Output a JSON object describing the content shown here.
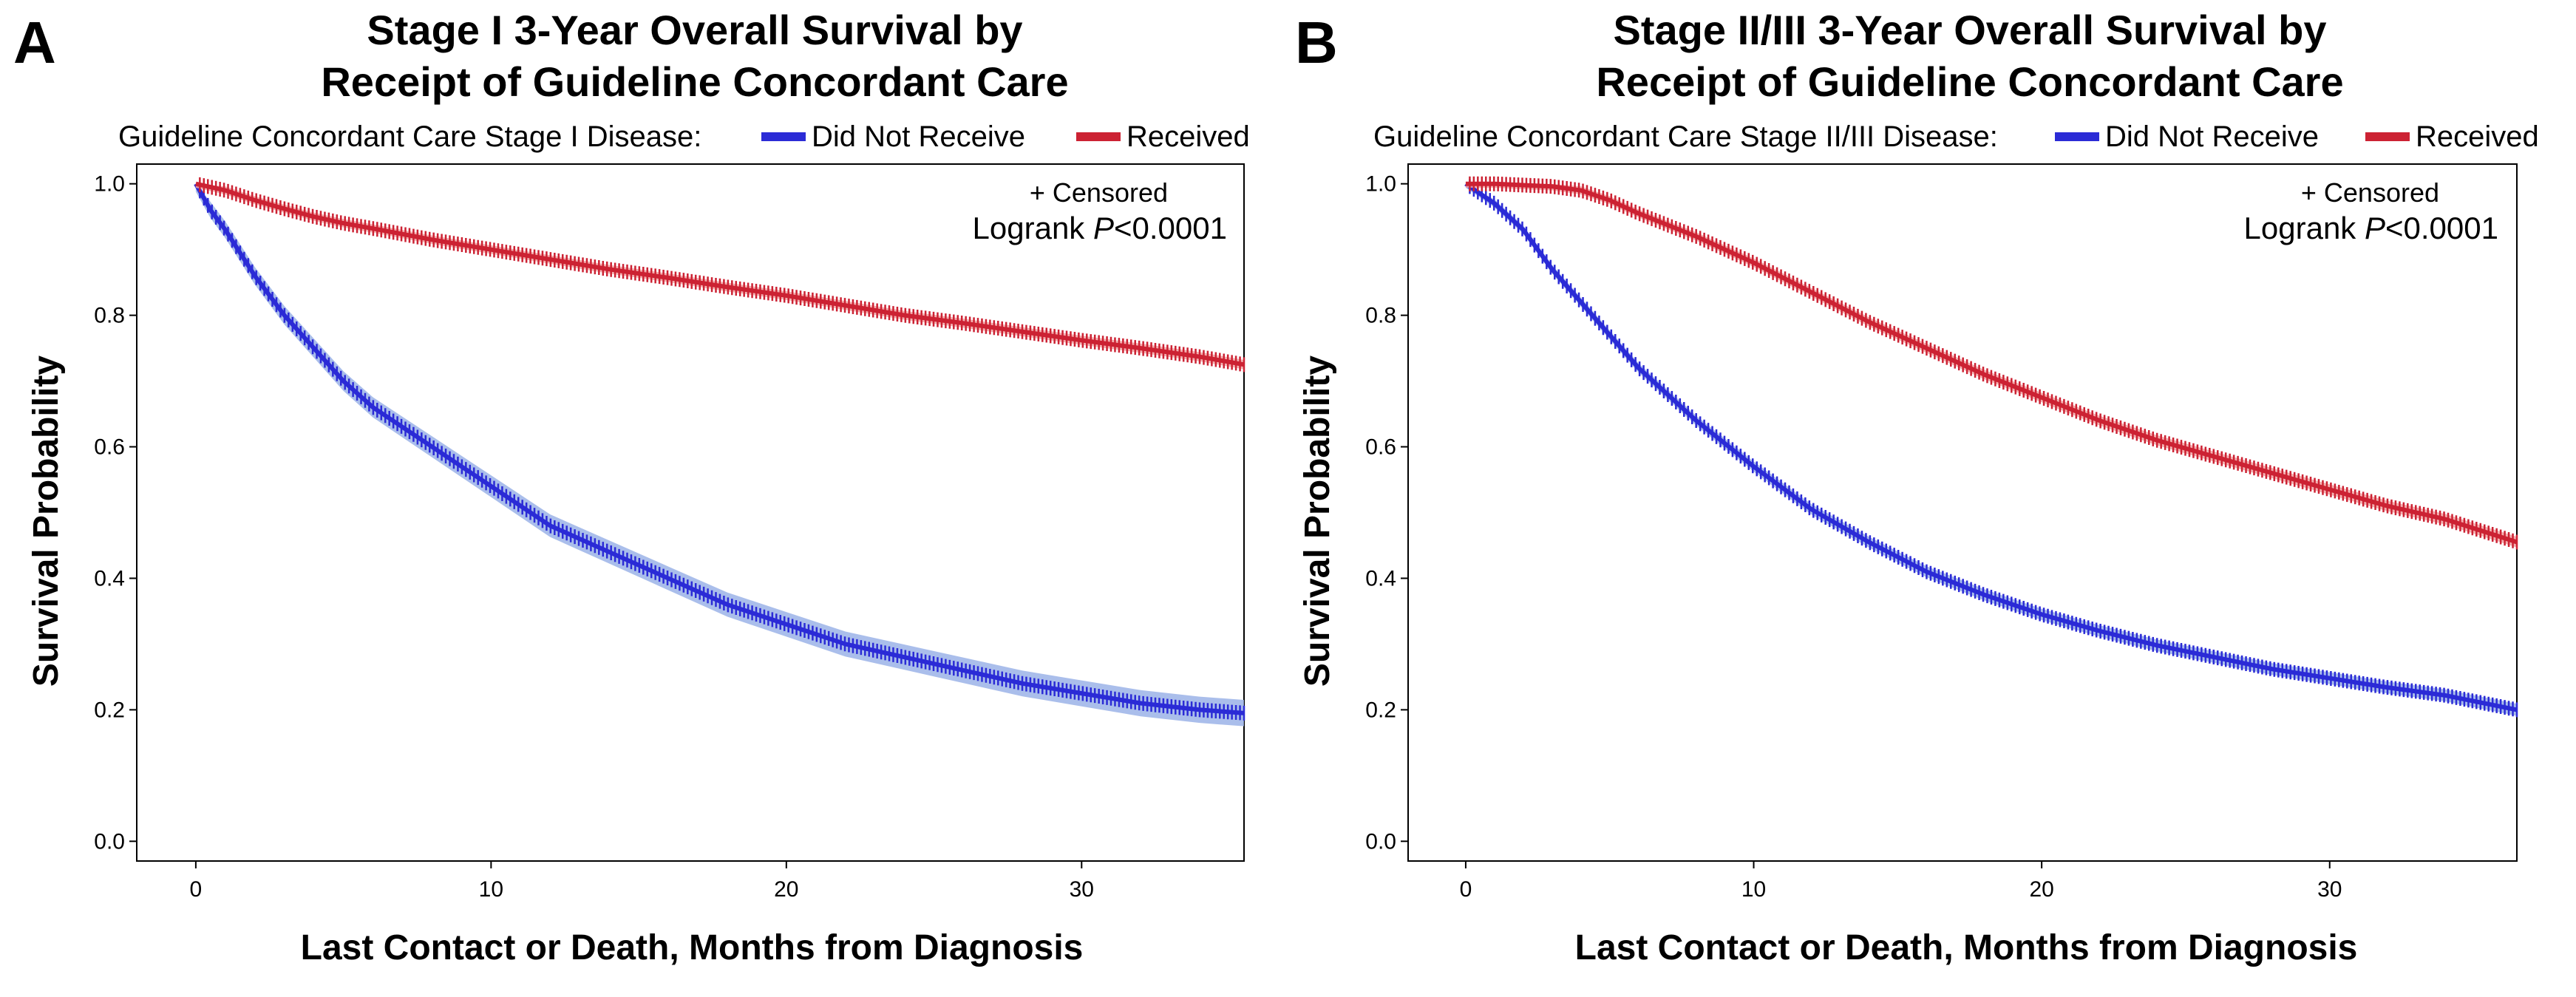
{
  "chart_data": [
    {
      "type": "line",
      "panel": "A",
      "title": [
        "Stage I 3-Year Overall Survival by",
        "Receipt of Guideline Concordant Care"
      ],
      "legend_title": "Guideline Concordant Care Stage I Disease:",
      "xlabel": "Last Contact or Death, Months from Diagnosis",
      "ylabel": "Survival Probability",
      "censored_label": "+ Censored",
      "logrank_prefix": "Logrank ",
      "logrank_p": "P",
      "logrank_value": "<0.0001",
      "xlim": [
        -2,
        35.5
      ],
      "ylim": [
        -0.03,
        1.03
      ],
      "xticks": [
        0,
        10,
        20,
        30
      ],
      "yticks": [
        "0.0",
        "0.2",
        "0.4",
        "0.6",
        "0.8",
        "1.0"
      ],
      "series": [
        {
          "name": "Did Not Receive",
          "color": "#2b2bd6",
          "band_color": "#9bb3e8",
          "x": [
            0,
            0.5,
            1,
            2,
            3,
            4,
            5,
            6,
            7,
            8,
            9,
            10,
            12,
            14,
            16,
            18,
            20,
            22,
            24,
            26,
            28,
            30,
            32,
            34,
            35.5
          ],
          "y": [
            1.0,
            0.96,
            0.93,
            0.86,
            0.8,
            0.75,
            0.7,
            0.66,
            0.63,
            0.6,
            0.57,
            0.54,
            0.48,
            0.44,
            0.4,
            0.36,
            0.33,
            0.3,
            0.28,
            0.26,
            0.24,
            0.225,
            0.21,
            0.2,
            0.195
          ]
        },
        {
          "name": "Received",
          "color": "#cc2233",
          "band_color": "#f2a5a5",
          "x": [
            0,
            1,
            2,
            3,
            4,
            5,
            6,
            8,
            10,
            12,
            14,
            16,
            18,
            20,
            22,
            24,
            26,
            28,
            30,
            32,
            34,
            35.5
          ],
          "y": [
            1.0,
            0.99,
            0.975,
            0.962,
            0.95,
            0.94,
            0.932,
            0.915,
            0.9,
            0.885,
            0.87,
            0.857,
            0.843,
            0.83,
            0.815,
            0.8,
            0.788,
            0.775,
            0.762,
            0.75,
            0.737,
            0.725
          ]
        }
      ]
    },
    {
      "type": "line",
      "panel": "B",
      "title": [
        "Stage II/III 3-Year Overall Survival by",
        "Receipt of Guideline Concordant Care"
      ],
      "legend_title": "Guideline Concordant Care Stage II/III Disease:",
      "xlabel": "Last Contact or Death, Months from Diagnosis",
      "ylabel": "Survival Probability",
      "censored_label": "+ Censored",
      "logrank_prefix": "Logrank ",
      "logrank_p": "P",
      "logrank_value": "<0.0001",
      "xlim": [
        -2,
        36.5
      ],
      "ylim": [
        -0.03,
        1.03
      ],
      "xticks": [
        0,
        10,
        20,
        30
      ],
      "yticks": [
        "0.0",
        "0.2",
        "0.4",
        "0.6",
        "0.8",
        "1.0"
      ],
      "series": [
        {
          "name": "Did Not Receive",
          "color": "#2b2bd6",
          "band_color": "#9bb3e8",
          "x": [
            0,
            1,
            2,
            3,
            4,
            5,
            6,
            8,
            10,
            12,
            14,
            16,
            18,
            20,
            22,
            24,
            26,
            28,
            30,
            32,
            34,
            36.5
          ],
          "y": [
            1.0,
            0.97,
            0.93,
            0.87,
            0.82,
            0.77,
            0.72,
            0.64,
            0.57,
            0.505,
            0.455,
            0.41,
            0.375,
            0.345,
            0.32,
            0.298,
            0.28,
            0.262,
            0.248,
            0.234,
            0.222,
            0.2
          ]
        },
        {
          "name": "Received",
          "color": "#cc2233",
          "band_color": "#f2a5a5",
          "x": [
            0,
            1,
            2,
            3,
            4,
            5,
            6,
            8,
            10,
            12,
            14,
            16,
            18,
            20,
            22,
            24,
            26,
            28,
            30,
            32,
            34,
            36.5
          ],
          "y": [
            1.0,
            1.0,
            0.998,
            0.996,
            0.99,
            0.975,
            0.955,
            0.92,
            0.88,
            0.835,
            0.79,
            0.75,
            0.71,
            0.675,
            0.64,
            0.61,
            0.585,
            0.56,
            0.535,
            0.51,
            0.49,
            0.455
          ]
        }
      ]
    }
  ]
}
